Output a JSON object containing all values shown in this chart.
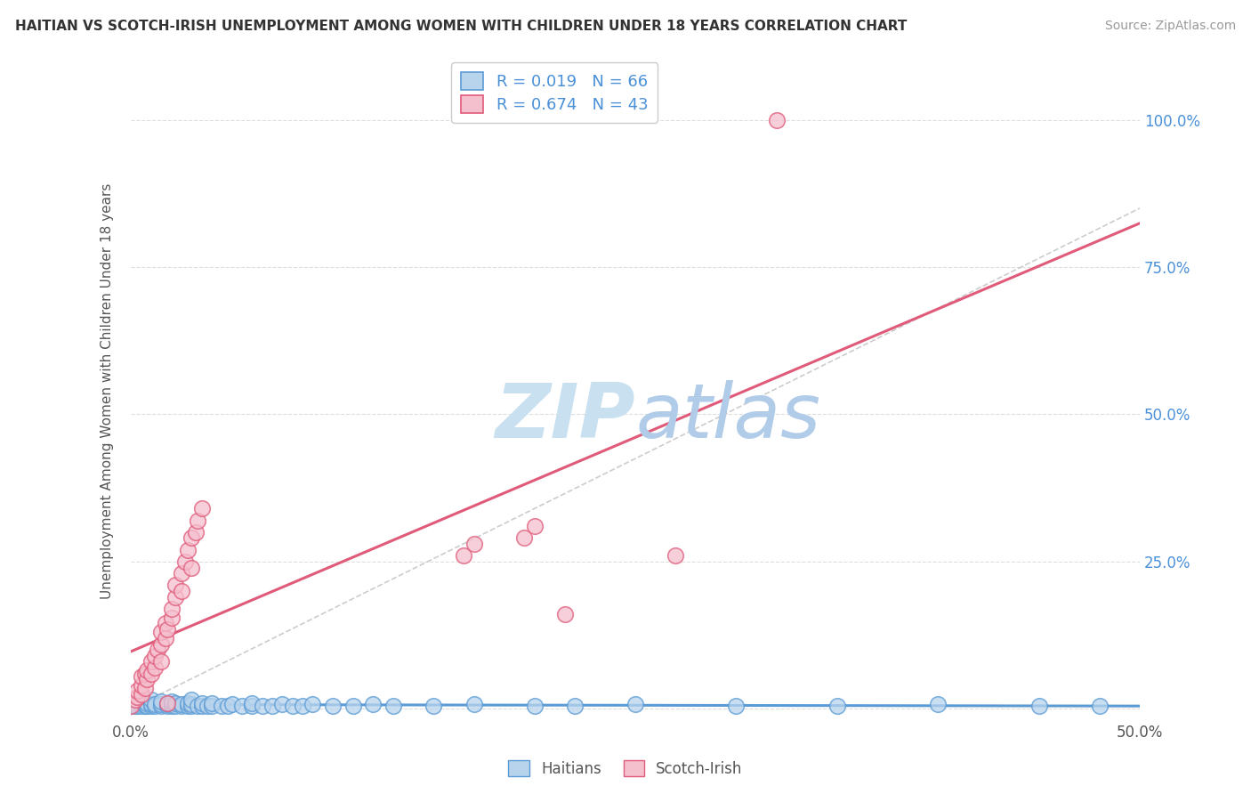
{
  "title": "HAITIAN VS SCOTCH-IRISH UNEMPLOYMENT AMONG WOMEN WITH CHILDREN UNDER 18 YEARS CORRELATION CHART",
  "source": "Source: ZipAtlas.com",
  "ylabel": "Unemployment Among Women with Children Under 18 years",
  "xlim": [
    0,
    0.5
  ],
  "ylim": [
    -0.02,
    1.1
  ],
  "xticks": [
    0.0,
    0.05,
    0.1,
    0.15,
    0.2,
    0.25,
    0.3,
    0.35,
    0.4,
    0.45,
    0.5
  ],
  "ytick_positions": [
    0.0,
    0.25,
    0.5,
    0.75,
    1.0
  ],
  "yticklabels": [
    "",
    "25.0%",
    "50.0%",
    "75.0%",
    "100.0%"
  ],
  "R_haitian": 0.019,
  "N_haitian": 66,
  "R_scotchirish": 0.674,
  "N_scotchirish": 43,
  "haitian_line_color": "#5b9bd5",
  "scotchirish_line_color": "#e05a7a",
  "haitian_scatter_facecolor": "#b8d4ed",
  "haitian_scatter_edgecolor": "#5b9bd5",
  "scotchirish_scatter_facecolor": "#f5c0ce",
  "scotchirish_scatter_edgecolor": "#e05a7a",
  "ref_line_color": "#c0c0c0",
  "grid_color": "#dddddd",
  "watermark_color": "#c8e0f0",
  "background_color": "#ffffff",
  "haitians_scatter": [
    [
      0.0,
      0.005
    ],
    [
      0.0,
      0.01
    ],
    [
      0.002,
      0.005
    ],
    [
      0.003,
      0.008
    ],
    [
      0.003,
      0.005
    ],
    [
      0.005,
      0.008
    ],
    [
      0.005,
      0.005
    ],
    [
      0.005,
      0.012
    ],
    [
      0.007,
      0.005
    ],
    [
      0.007,
      0.008
    ],
    [
      0.008,
      0.005
    ],
    [
      0.008,
      0.01
    ],
    [
      0.01,
      0.005
    ],
    [
      0.01,
      0.008
    ],
    [
      0.01,
      0.015
    ],
    [
      0.012,
      0.005
    ],
    [
      0.012,
      0.008
    ],
    [
      0.015,
      0.005
    ],
    [
      0.015,
      0.008
    ],
    [
      0.015,
      0.012
    ],
    [
      0.018,
      0.005
    ],
    [
      0.018,
      0.008
    ],
    [
      0.02,
      0.005
    ],
    [
      0.02,
      0.008
    ],
    [
      0.02,
      0.012
    ],
    [
      0.022,
      0.005
    ],
    [
      0.022,
      0.01
    ],
    [
      0.025,
      0.005
    ],
    [
      0.025,
      0.008
    ],
    [
      0.028,
      0.005
    ],
    [
      0.028,
      0.01
    ],
    [
      0.03,
      0.005
    ],
    [
      0.03,
      0.008
    ],
    [
      0.03,
      0.015
    ],
    [
      0.033,
      0.005
    ],
    [
      0.035,
      0.005
    ],
    [
      0.035,
      0.01
    ],
    [
      0.038,
      0.005
    ],
    [
      0.04,
      0.005
    ],
    [
      0.04,
      0.01
    ],
    [
      0.045,
      0.005
    ],
    [
      0.048,
      0.005
    ],
    [
      0.05,
      0.008
    ],
    [
      0.055,
      0.005
    ],
    [
      0.06,
      0.005
    ],
    [
      0.06,
      0.01
    ],
    [
      0.065,
      0.005
    ],
    [
      0.07,
      0.005
    ],
    [
      0.075,
      0.008
    ],
    [
      0.08,
      0.005
    ],
    [
      0.085,
      0.005
    ],
    [
      0.09,
      0.008
    ],
    [
      0.1,
      0.005
    ],
    [
      0.11,
      0.005
    ],
    [
      0.12,
      0.008
    ],
    [
      0.13,
      0.005
    ],
    [
      0.15,
      0.005
    ],
    [
      0.17,
      0.008
    ],
    [
      0.2,
      0.005
    ],
    [
      0.22,
      0.005
    ],
    [
      0.25,
      0.008
    ],
    [
      0.3,
      0.005
    ],
    [
      0.35,
      0.005
    ],
    [
      0.4,
      0.008
    ],
    [
      0.45,
      0.005
    ],
    [
      0.48,
      0.005
    ]
  ],
  "scotchirish_scatter": [
    [
      0.0,
      0.005
    ],
    [
      0.002,
      0.015
    ],
    [
      0.003,
      0.02
    ],
    [
      0.003,
      0.03
    ],
    [
      0.005,
      0.025
    ],
    [
      0.005,
      0.04
    ],
    [
      0.005,
      0.055
    ],
    [
      0.007,
      0.035
    ],
    [
      0.007,
      0.06
    ],
    [
      0.008,
      0.05
    ],
    [
      0.008,
      0.065
    ],
    [
      0.01,
      0.06
    ],
    [
      0.01,
      0.08
    ],
    [
      0.012,
      0.07
    ],
    [
      0.012,
      0.09
    ],
    [
      0.013,
      0.1
    ],
    [
      0.015,
      0.08
    ],
    [
      0.015,
      0.11
    ],
    [
      0.015,
      0.13
    ],
    [
      0.017,
      0.12
    ],
    [
      0.017,
      0.145
    ],
    [
      0.018,
      0.135
    ],
    [
      0.02,
      0.155
    ],
    [
      0.02,
      0.17
    ],
    [
      0.022,
      0.19
    ],
    [
      0.022,
      0.21
    ],
    [
      0.025,
      0.2
    ],
    [
      0.025,
      0.23
    ],
    [
      0.027,
      0.25
    ],
    [
      0.028,
      0.27
    ],
    [
      0.03,
      0.24
    ],
    [
      0.03,
      0.29
    ],
    [
      0.032,
      0.3
    ],
    [
      0.033,
      0.32
    ],
    [
      0.035,
      0.34
    ],
    [
      0.165,
      0.26
    ],
    [
      0.17,
      0.28
    ],
    [
      0.195,
      0.29
    ],
    [
      0.2,
      0.31
    ],
    [
      0.215,
      0.16
    ],
    [
      0.27,
      0.26
    ],
    [
      0.32,
      1.0
    ],
    [
      0.018,
      0.01
    ]
  ]
}
